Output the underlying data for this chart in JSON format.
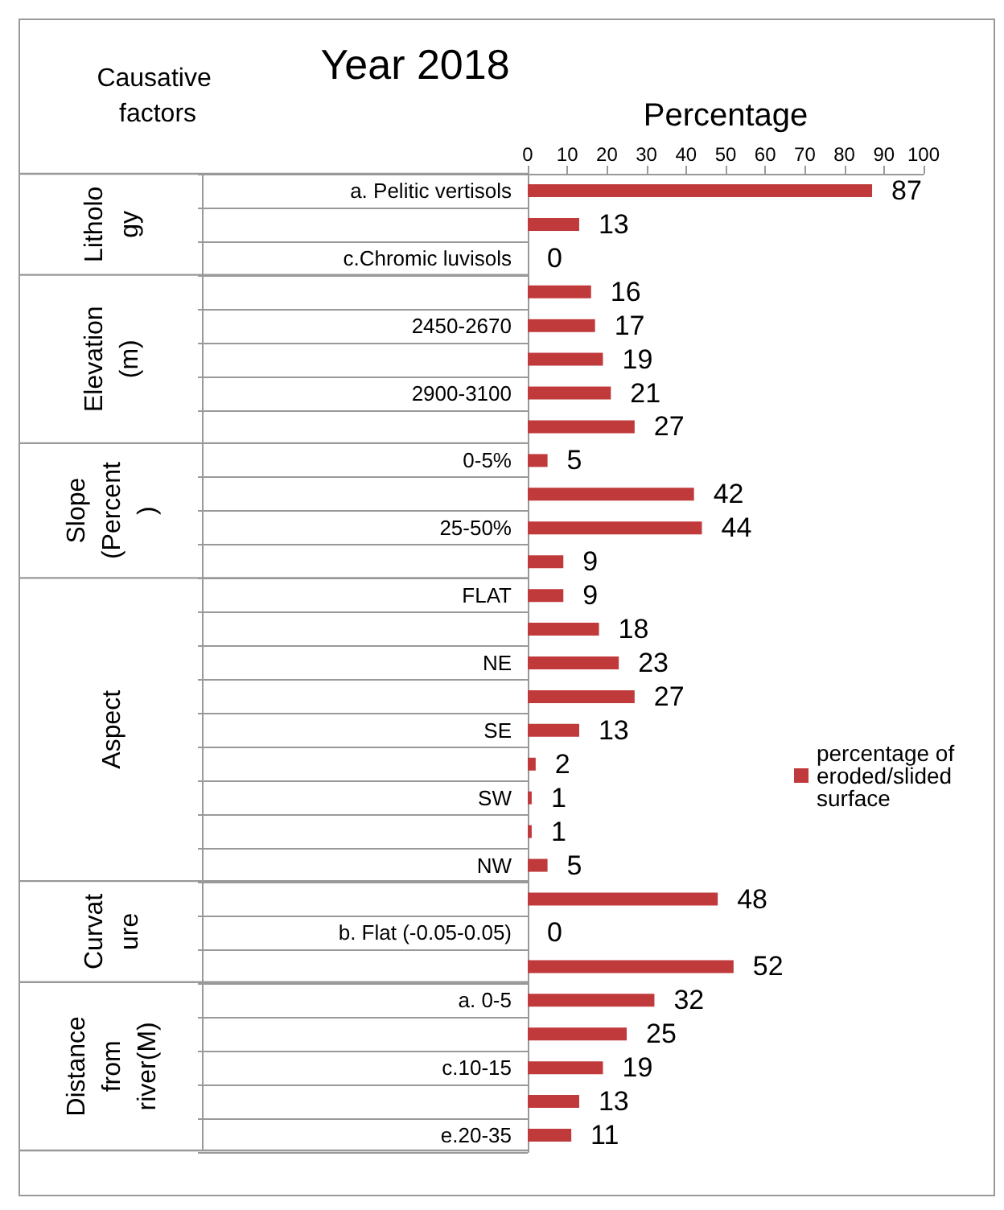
{
  "chart_data": {
    "type": "bar",
    "orientation": "horizontal",
    "title": "Year 2018",
    "xlabel": "Percentage",
    "ylabel": "Causative factors",
    "categories": [
      "a. Pelitic vertisols",
      null,
      "c.Chromic luvisols",
      null,
      "2450-2670",
      null,
      "2900-3100",
      null,
      "0-5%",
      null,
      "25-50%",
      null,
      "FLAT",
      null,
      "NE",
      null,
      "SE",
      null,
      "SW",
      null,
      "NW",
      null,
      "b. Flat (-0.05-0.05)",
      null,
      "a. 0-5",
      null,
      "c.10-15",
      null,
      "e.20-35"
    ],
    "series": [
      {
        "name": "percentage of eroded/slided surface",
        "color": "#c0393b",
        "values": [
          87,
          13,
          0,
          16,
          17,
          19,
          21,
          27,
          5,
          42,
          44,
          9,
          9,
          18,
          23,
          27,
          13,
          2,
          1,
          1,
          5,
          48,
          0,
          52,
          32,
          25,
          19,
          13,
          11
        ]
      }
    ],
    "xlim": [
      0,
      100
    ],
    "xticks": [
      0,
      10,
      20,
      30,
      40,
      50,
      60,
      70,
      80,
      90,
      100
    ],
    "data_labels": true,
    "grid": false,
    "legend": "right",
    "annotations": [
      "Litholo\ngy",
      "Elevation\n(m)",
      "Slope\n(Percent\n)",
      "Aspect",
      "Curvat\nure",
      "Distance\nfrom\nriver(M)"
    ]
  }
}
